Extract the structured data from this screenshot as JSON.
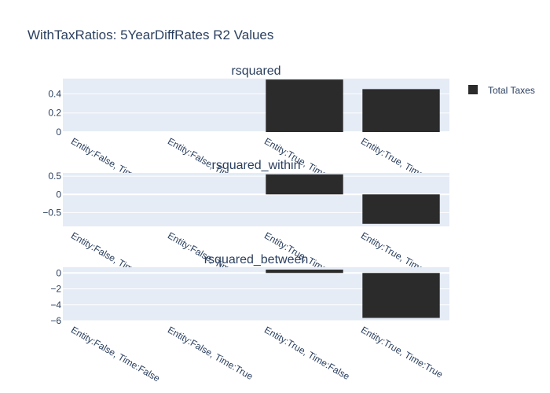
{
  "chart_data": {
    "type": "bar",
    "title": "WithTaxRatios: 5YearDiffRates R2 Values",
    "categories": [
      "Entity:False, Time:False",
      "Entity:False, Time:True",
      "Entity:True, Time:False",
      "Entity:True, Time:True"
    ],
    "legend": {
      "label": "Total Taxes",
      "placement": "top-right",
      "color": "#2b2b2b"
    },
    "bar_color": "#2b2b2b",
    "plot_background": "#e5ecf6",
    "gridline_color": "#ffffff",
    "subplots": [
      {
        "name": "rsquared",
        "title": "rsquared",
        "values": [
          0,
          0,
          0.55,
          0.45
        ],
        "ylim": [
          0,
          0.56
        ],
        "yticks": [
          0,
          0.2,
          0.4
        ],
        "ytick_labels": [
          "0",
          "0.2",
          "0.4"
        ]
      },
      {
        "name": "rsquared-within",
        "title": "rsquared_within",
        "values": [
          0,
          0,
          0.55,
          -0.81
        ],
        "ylim": [
          -0.88,
          0.59
        ],
        "yticks": [
          -0.5,
          0,
          0.5
        ],
        "ytick_labels": [
          "−0.5",
          "0",
          "0.5"
        ]
      },
      {
        "name": "rsquared-between",
        "title": "rsquared_between",
        "values": [
          0,
          0,
          0.42,
          -5.65
        ],
        "ylim": [
          -6.0,
          0.72
        ],
        "yticks": [
          -6,
          -4,
          -2,
          0
        ],
        "ytick_labels": [
          "−6",
          "−4",
          "−2",
          "0"
        ]
      }
    ]
  }
}
